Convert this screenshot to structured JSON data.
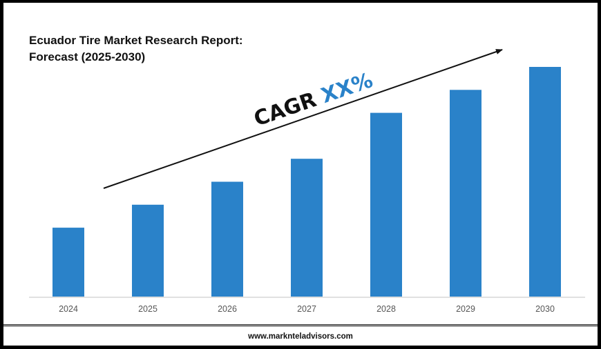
{
  "chart_data": {
    "type": "bar",
    "title": "Ecuador Tire Market Research Report: Forecast (2025-2030)",
    "title_lines": [
      "Ecuador Tire Market Research Report:",
      "Forecast (2025-2030)"
    ],
    "categories": [
      "2024",
      "2025",
      "2026",
      "2027",
      "2028",
      "2029",
      "2030"
    ],
    "values": [
      3,
      4,
      5,
      6,
      8,
      9,
      10
    ],
    "xlabel": "",
    "ylabel": "",
    "ylim": [
      0,
      10
    ],
    "y_axis_shown": false,
    "grid": false,
    "bar_color": "#2a82c9",
    "annotation": {
      "prefix": "CAGR",
      "value": "XX%",
      "prefix_color": "#111111",
      "value_color": "#2a82c9",
      "trend_arrow": "upward"
    }
  },
  "footer": {
    "website": "www.marknteladvisors.com"
  }
}
